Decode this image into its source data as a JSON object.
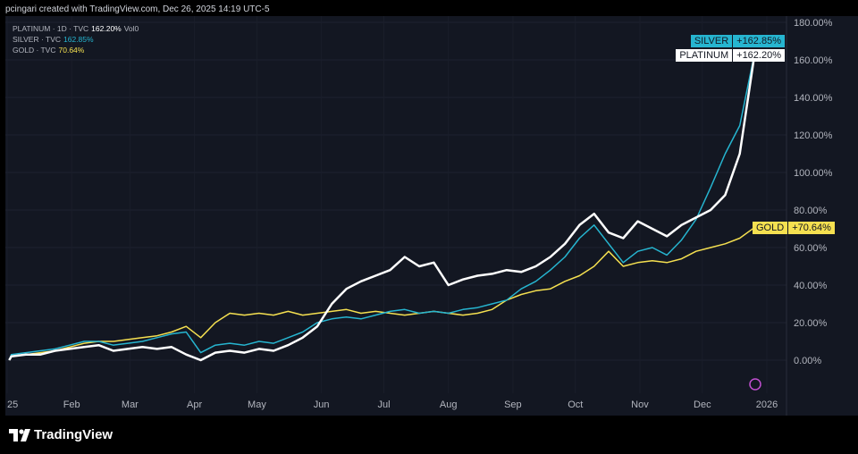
{
  "credit": "pcingari created with TradingView.com, Dec 26, 2025 14:19 UTC-5",
  "legend": [
    {
      "label": "PLATINUM · 1D · TVC",
      "value": "162.20%",
      "extra": "Vol0",
      "color": "#ffffff"
    },
    {
      "label": "SILVER · TVC",
      "value": "162.85%",
      "extra": "",
      "color": "#26b5d0"
    },
    {
      "label": "GOLD · TVC",
      "value": "70.64%",
      "extra": "",
      "color": "#f5e050"
    }
  ],
  "tags": {
    "silver": {
      "name": "SILVER",
      "value": "+162.85%"
    },
    "platinum": {
      "name": "PLATINUM",
      "value": "+162.20%"
    },
    "gold": {
      "name": "GOLD",
      "value": "+70.64%"
    }
  },
  "logo": "TradingView",
  "chart_data": {
    "type": "line",
    "ylim": [
      0,
      180
    ],
    "yticks": [
      "0.00%",
      "20.00%",
      "40.00%",
      "60.00%",
      "80.00%",
      "100.00%",
      "120.00%",
      "140.00%",
      "160.00%",
      "180.00%"
    ],
    "xticks": [
      "25",
      "Feb",
      "Mar",
      "Apr",
      "May",
      "Jun",
      "Jul",
      "Aug",
      "Sep",
      "Oct",
      "Nov",
      "Dec",
      "2026"
    ],
    "x": [
      "2025-01-02",
      "2025-01-03",
      "2025-01-10",
      "2025-01-17",
      "2025-01-24",
      "2025-01-31",
      "2025-02-07",
      "2025-02-14",
      "2025-02-21",
      "2025-02-28",
      "2025-03-07",
      "2025-03-14",
      "2025-03-21",
      "2025-03-28",
      "2025-04-04",
      "2025-04-11",
      "2025-04-18",
      "2025-04-25",
      "2025-05-02",
      "2025-05-09",
      "2025-05-16",
      "2025-05-23",
      "2025-05-30",
      "2025-06-06",
      "2025-06-13",
      "2025-06-20",
      "2025-06-27",
      "2025-07-04",
      "2025-07-11",
      "2025-07-18",
      "2025-07-25",
      "2025-08-01",
      "2025-08-08",
      "2025-08-15",
      "2025-08-22",
      "2025-08-29",
      "2025-09-05",
      "2025-09-12",
      "2025-09-19",
      "2025-09-26",
      "2025-10-03",
      "2025-10-10",
      "2025-10-17",
      "2025-10-24",
      "2025-10-31",
      "2025-11-07",
      "2025-11-14",
      "2025-11-21",
      "2025-11-28",
      "2025-12-05",
      "2025-12-12",
      "2025-12-19",
      "2025-12-26"
    ],
    "series": [
      {
        "name": "GOLD",
        "color": "#f5e050",
        "values": [
          0,
          2,
          3,
          4,
          5,
          7,
          9,
          10,
          10,
          11,
          12,
          13,
          15,
          18,
          12,
          20,
          25,
          24,
          25,
          24,
          26,
          24,
          25,
          26,
          27,
          25,
          26,
          25,
          24,
          25,
          26,
          25,
          24,
          25,
          27,
          32,
          35,
          37,
          38,
          42,
          45,
          50,
          58,
          50,
          52,
          53,
          52,
          54,
          58,
          60,
          62,
          65,
          70.64
        ]
      },
      {
        "name": "SILVER",
        "color": "#26b5d0",
        "values": [
          0,
          3,
          4,
          5,
          6,
          8,
          10,
          10,
          8,
          9,
          10,
          12,
          14,
          15,
          4,
          8,
          9,
          8,
          10,
          9,
          12,
          15,
          20,
          22,
          23,
          22,
          24,
          26,
          27,
          25,
          26,
          25,
          27,
          28,
          30,
          32,
          38,
          42,
          48,
          55,
          65,
          72,
          62,
          52,
          58,
          60,
          56,
          64,
          75,
          92,
          110,
          125,
          162.85
        ]
      },
      {
        "name": "PLATINUM",
        "color": "#ffffff",
        "values": [
          0,
          2,
          3,
          3,
          5,
          6,
          7,
          8,
          5,
          6,
          7,
          6,
          7,
          3,
          0,
          4,
          5,
          4,
          6,
          5,
          8,
          12,
          18,
          30,
          38,
          42,
          45,
          48,
          55,
          50,
          52,
          40,
          43,
          45,
          46,
          48,
          47,
          50,
          55,
          62,
          72,
          78,
          68,
          65,
          74,
          70,
          66,
          72,
          76,
          80,
          88,
          110,
          162.2
        ]
      }
    ]
  }
}
